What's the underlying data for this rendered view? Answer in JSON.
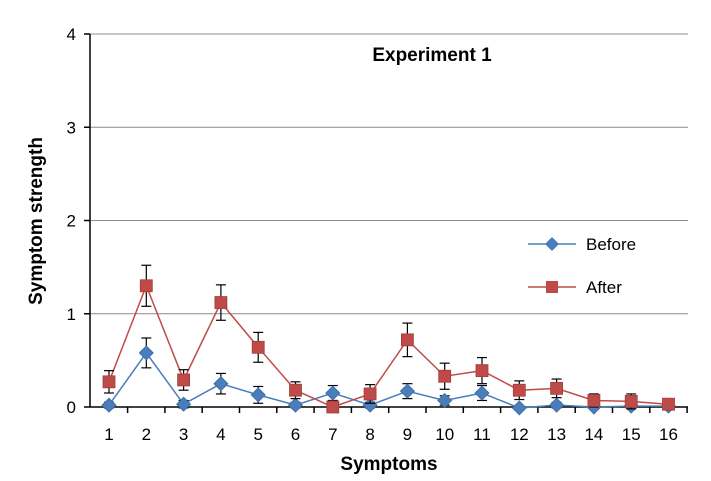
{
  "chart_data": {
    "type": "line",
    "title": "Experiment 1",
    "xlabel": "Symptoms",
    "ylabel": "Symptom strength",
    "categories": [
      "1",
      "2",
      "3",
      "4",
      "5",
      "6",
      "7",
      "8",
      "9",
      "10",
      "11",
      "12",
      "13",
      "14",
      "15",
      "16"
    ],
    "yticks": [
      "0",
      "1",
      "2",
      "3",
      "4"
    ],
    "ylim": [
      0,
      4
    ],
    "grid": true,
    "legend_position": "right",
    "series": [
      {
        "name": "Before",
        "color": "#4a7ebb",
        "marker": "diamond",
        "values": [
          0.02,
          0.58,
          0.03,
          0.25,
          0.13,
          0.02,
          0.15,
          0.02,
          0.17,
          0.07,
          0.15,
          -0.01,
          0.02,
          0.0,
          0.01,
          0.01
        ],
        "errors": [
          0.03,
          0.16,
          0.04,
          0.11,
          0.09,
          0.03,
          0.08,
          0.03,
          0.08,
          0.05,
          0.08,
          0.02,
          0.03,
          0.02,
          0.02,
          0.02
        ]
      },
      {
        "name": "After",
        "color": "#be4b48",
        "marker": "square",
        "values": [
          0.27,
          1.3,
          0.29,
          1.12,
          0.64,
          0.18,
          0.0,
          0.14,
          0.72,
          0.33,
          0.39,
          0.18,
          0.2,
          0.07,
          0.06,
          0.03
        ],
        "errors": [
          0.12,
          0.22,
          0.11,
          0.19,
          0.16,
          0.09,
          0.02,
          0.1,
          0.18,
          0.14,
          0.14,
          0.1,
          0.1,
          0.07,
          0.08,
          0.03
        ]
      }
    ]
  }
}
